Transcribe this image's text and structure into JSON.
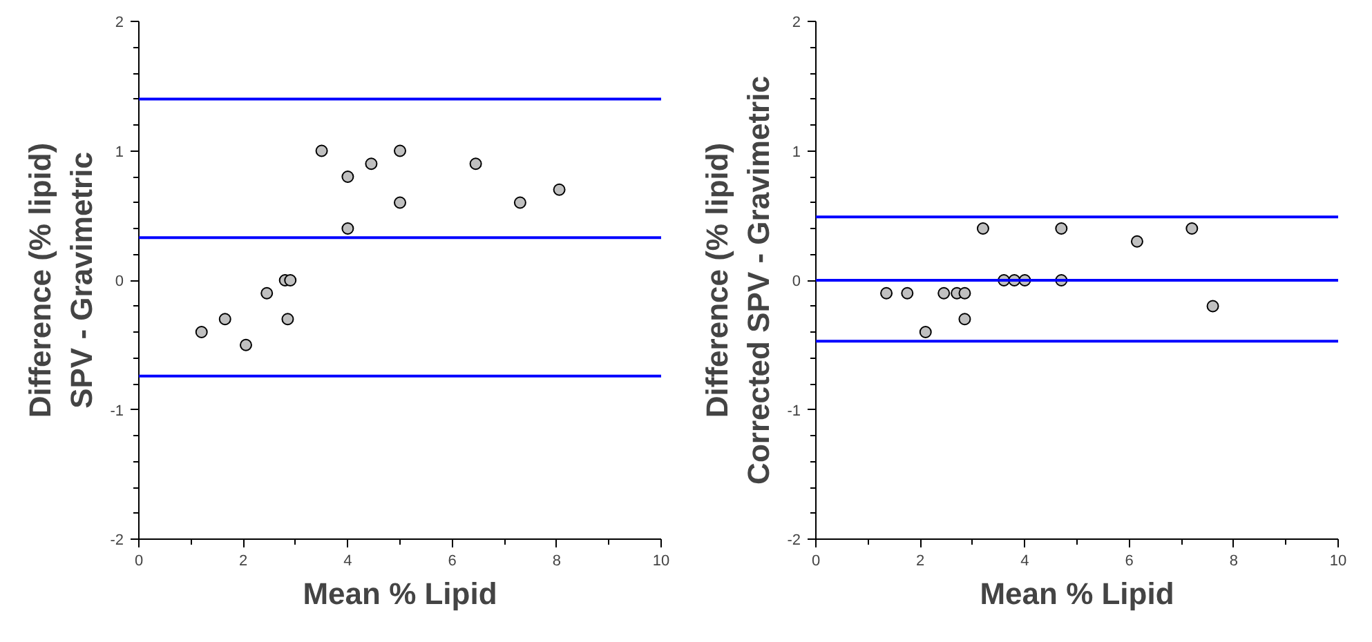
{
  "chart_data": [
    {
      "type": "scatter",
      "xlabel": "Mean % Lipid",
      "ylabel": "Difference (% lipid)\nSPV - Gravimetric",
      "xlim": [
        0,
        10
      ],
      "ylim": [
        -2,
        2
      ],
      "xticks": [
        0,
        2,
        4,
        6,
        8,
        10
      ],
      "yticks": [
        -2,
        -1,
        0,
        1,
        2
      ],
      "grid": false,
      "marker": "circle",
      "series": [
        {
          "color": "#c0c0c0",
          "x": [
            1.2,
            1.65,
            2.05,
            2.45,
            2.8,
            2.9,
            2.85,
            3.5,
            4.0,
            4.0,
            4.45,
            5.0,
            5.0,
            6.45,
            7.3,
            8.05
          ],
          "values": [
            -0.4,
            -0.3,
            -0.5,
            -0.1,
            0,
            0,
            -0.3,
            1.0,
            0.8,
            0.4,
            0.9,
            1.0,
            0.6,
            0.9,
            0.6,
            0.7
          ]
        }
      ],
      "ref_lines": [
        {
          "axis": "y",
          "value": 1.4,
          "color": "#0000ff"
        },
        {
          "axis": "y",
          "value": 0.33,
          "color": "#0000ff"
        },
        {
          "axis": "y",
          "value": -0.74,
          "color": "#0000ff"
        }
      ]
    },
    {
      "type": "scatter",
      "xlabel": "Mean % Lipid",
      "ylabel": "Difference (% lipid)\nCorrected SPV - Gravimetric",
      "xlim": [
        0,
        10
      ],
      "ylim": [
        -2,
        2
      ],
      "xticks": [
        0,
        2,
        4,
        6,
        8,
        10
      ],
      "yticks": [
        -2,
        -1,
        0,
        1,
        2
      ],
      "grid": false,
      "marker": "circle",
      "series": [
        {
          "color": "#c0c0c0",
          "x": [
            1.35,
            1.75,
            2.1,
            2.45,
            2.7,
            2.85,
            2.85,
            3.2,
            3.6,
            3.8,
            4.0,
            4.7,
            4.7,
            6.15,
            7.2,
            7.6
          ],
          "values": [
            -0.1,
            -0.1,
            -0.4,
            -0.1,
            -0.1,
            -0.1,
            -0.3,
            0.4,
            0,
            0,
            0,
            0.4,
            0,
            0.3,
            0.4,
            -0.2
          ]
        }
      ],
      "ref_lines": [
        {
          "axis": "y",
          "value": 0.49,
          "color": "#0000ff"
        },
        {
          "axis": "y",
          "value": 0.0,
          "color": "#0000ff"
        },
        {
          "axis": "y",
          "value": -0.47,
          "color": "#0000ff"
        }
      ]
    }
  ]
}
